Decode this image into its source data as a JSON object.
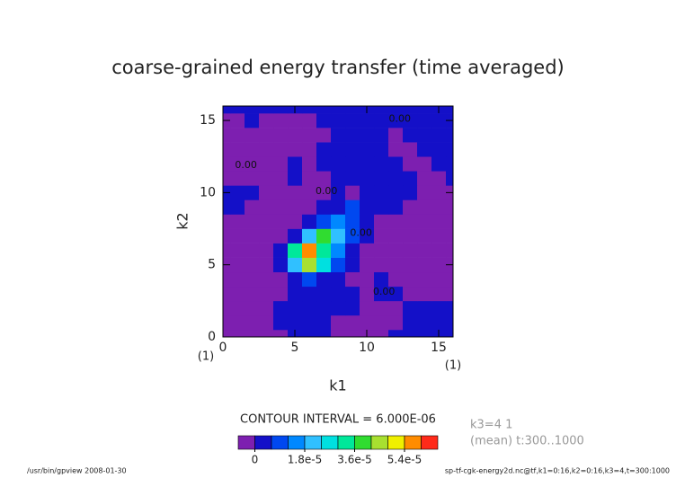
{
  "chart_data": {
    "type": "contour",
    "title": "coarse-grained energy transfer (time averaged)",
    "xlabel": "k1",
    "ylabel": "k2",
    "x_unit_note": "(1)",
    "y_unit_note": "(1)",
    "xlim": [
      0,
      16
    ],
    "ylim": [
      0,
      16
    ],
    "xticks": [
      0,
      5,
      10,
      15
    ],
    "yticks": [
      0,
      5,
      10,
      15
    ],
    "x": [
      0,
      1,
      2,
      3,
      4,
      5,
      6,
      7,
      8,
      9,
      10,
      11,
      12,
      13,
      14,
      15,
      16
    ],
    "y": [
      0,
      1,
      2,
      3,
      4,
      5,
      6,
      7,
      8,
      9,
      10,
      11,
      12,
      13,
      14,
      15,
      16
    ],
    "z": [
      [
        -2e-06,
        -2e-06,
        -2e-06,
        -2e-06,
        -2e-06,
        3e-06,
        3e-06,
        3e-06,
        -2e-06,
        -2e-06,
        -2e-06,
        -2e-06,
        3e-06,
        3e-06,
        3e-06,
        3e-06,
        3e-06
      ],
      [
        -2e-06,
        -2e-06,
        -2e-06,
        -2e-06,
        3e-06,
        3e-06,
        3e-06,
        3e-06,
        -2e-06,
        -2e-06,
        -2e-06,
        -2e-06,
        -2e-06,
        3e-06,
        3e-06,
        3e-06,
        3e-06
      ],
      [
        -2e-06,
        -2e-06,
        -2e-06,
        -2e-06,
        3e-06,
        3e-06,
        3e-06,
        3e-06,
        3e-06,
        3e-06,
        -2e-06,
        -2e-06,
        -2e-06,
        3e-06,
        3e-06,
        3e-06,
        3e-06
      ],
      [
        -2e-06,
        -2e-06,
        -2e-06,
        -2e-06,
        -2e-06,
        3e-06,
        3e-06,
        3e-06,
        3e-06,
        3e-06,
        -2e-06,
        3e-06,
        3e-06,
        -2e-06,
        -2e-06,
        -2e-06,
        -2e-06
      ],
      [
        -2e-06,
        -2e-06,
        -2e-06,
        -2e-06,
        -2e-06,
        3e-06,
        1e-05,
        3e-06,
        3e-06,
        -2e-06,
        -2e-06,
        3e-06,
        -2e-06,
        -2e-06,
        -2e-06,
        -2e-06,
        -2e-06
      ],
      [
        -2e-06,
        -2e-06,
        -2e-06,
        -2e-06,
        3e-06,
        2e-05,
        4.6e-05,
        2.4e-05,
        8e-06,
        3e-06,
        -2e-06,
        -2e-06,
        -2e-06,
        -2e-06,
        -2e-06,
        -2e-06,
        -2e-06
      ],
      [
        -2e-06,
        -2e-06,
        -2e-06,
        -2e-06,
        3e-06,
        3.2e-05,
        5.8e-05,
        3.2e-05,
        1.4e-05,
        3e-06,
        -2e-06,
        -2e-06,
        -2e-06,
        -2e-06,
        -2e-06,
        -2e-06,
        -2e-06
      ],
      [
        -2e-06,
        -2e-06,
        -2e-06,
        -2e-06,
        -2e-06,
        3e-06,
        1.8e-05,
        3.6e-05,
        2.2e-05,
        8e-06,
        3e-06,
        -2e-06,
        -2e-06,
        -2e-06,
        -2e-06,
        -2e-06,
        -2e-06
      ],
      [
        -2e-06,
        -2e-06,
        -2e-06,
        -2e-06,
        -2e-06,
        -2e-06,
        3e-06,
        1e-05,
        1.6e-05,
        8e-06,
        3e-06,
        -2e-06,
        -2e-06,
        -2e-06,
        -2e-06,
        -2e-06,
        -2e-06
      ],
      [
        3e-06,
        3e-06,
        -2e-06,
        -2e-06,
        -2e-06,
        -2e-06,
        -2e-06,
        3e-06,
        3e-06,
        8e-06,
        3e-06,
        3e-06,
        3e-06,
        -2e-06,
        -2e-06,
        -2e-06,
        -2e-06
      ],
      [
        3e-06,
        3e-06,
        3e-06,
        -2e-06,
        -2e-06,
        -2e-06,
        -2e-06,
        -2e-06,
        3e-06,
        -2e-06,
        3e-06,
        3e-06,
        3e-06,
        3e-06,
        -2e-06,
        -2e-06,
        -2e-06
      ],
      [
        -2e-06,
        -2e-06,
        -2e-06,
        -2e-06,
        -2e-06,
        3e-06,
        -2e-06,
        -2e-06,
        3e-06,
        3e-06,
        3e-06,
        3e-06,
        3e-06,
        3e-06,
        -2e-06,
        -2e-06,
        3e-06
      ],
      [
        -2e-06,
        -2e-06,
        -2e-06,
        -2e-06,
        -2e-06,
        3e-06,
        -2e-06,
        3e-06,
        3e-06,
        3e-06,
        3e-06,
        3e-06,
        3e-06,
        -2e-06,
        -2e-06,
        3e-06,
        3e-06
      ],
      [
        -2e-06,
        -2e-06,
        -2e-06,
        -2e-06,
        -2e-06,
        -2e-06,
        -2e-06,
        3e-06,
        3e-06,
        3e-06,
        3e-06,
        3e-06,
        -2e-06,
        -2e-06,
        3e-06,
        3e-06,
        3e-06
      ],
      [
        -2e-06,
        -2e-06,
        -2e-06,
        -2e-06,
        -2e-06,
        -2e-06,
        -2e-06,
        -2e-06,
        3e-06,
        3e-06,
        3e-06,
        3e-06,
        -2e-06,
        3e-06,
        3e-06,
        3e-06,
        3e-06
      ],
      [
        -2e-06,
        -2e-06,
        3e-06,
        -2e-06,
        -2e-06,
        -2e-06,
        -2e-06,
        3e-06,
        3e-06,
        3e-06,
        3e-06,
        3e-06,
        3e-06,
        3e-06,
        3e-06,
        3e-06,
        3e-06
      ],
      [
        3e-06,
        3e-06,
        3e-06,
        3e-06,
        3e-06,
        3e-06,
        3e-06,
        3e-06,
        3e-06,
        3e-06,
        3e-06,
        3e-06,
        3e-06,
        3e-06,
        3e-06,
        3e-06,
        3e-06
      ]
    ],
    "levels": [
      0,
      6e-06,
      1.2e-05,
      1.8e-05,
      2.4e-05,
      3e-05,
      3.6e-05,
      4.2e-05,
      4.8e-05,
      5.4e-05,
      6e-05
    ],
    "colors": [
      "#7d1fb0",
      "#1410c8",
      "#0048f0",
      "#0088ff",
      "#30c0ff",
      "#00e0e0",
      "#00e89a",
      "#30dc30",
      "#a8e030",
      "#f0f000",
      "#ff8c00",
      "#ff2a1a"
    ],
    "contour_labels": [
      {
        "text": "0.00",
        "x": 1.6,
        "y": 11.9
      },
      {
        "text": "0.00",
        "x": 7.2,
        "y": 10.1
      },
      {
        "text": "0.00",
        "x": 9.6,
        "y": 7.2
      },
      {
        "text": "0.00",
        "x": 11.2,
        "y": 3.1
      },
      {
        "text": "0.00",
        "x": 12.3,
        "y": 15.1
      }
    ],
    "colorbar_ticks": [
      {
        "value": 0,
        "label": "0"
      },
      {
        "value": 1.8e-05,
        "label": "1.8e-5"
      },
      {
        "value": 3.6e-05,
        "label": "3.6e-5"
      },
      {
        "value": 5.4e-05,
        "label": "5.4e-5"
      }
    ],
    "contour_interval_text": "CONTOUR INTERVAL = 6.000E-06",
    "info_lines": [
      "k3=4 1",
      "(mean) t:300..1000"
    ],
    "footer_left": "/usr/bin/gpview  2008-01-30",
    "footer_right": "sp-tf-cgk-energy2d.nc@tf,k1=0:16,k2=0:16,k3=4,t=300:1000"
  }
}
